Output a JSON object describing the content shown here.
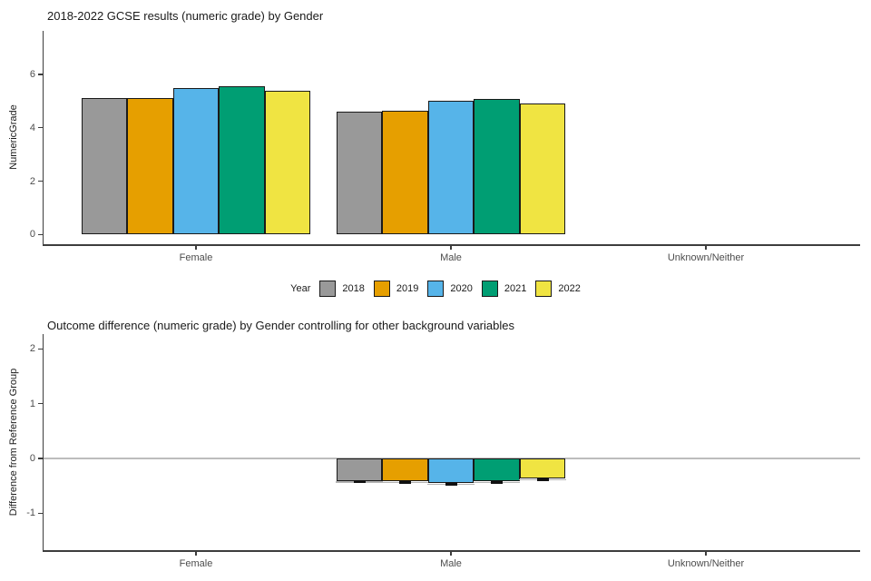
{
  "page": {
    "background": "#ffffff"
  },
  "chart_data": [
    {
      "type": "bar",
      "title": "2018-2022 GCSE results (numeric grade) by Gender",
      "ylabel": "NumericGrade",
      "xlabel": "",
      "categories": [
        "Female",
        "Male",
        "Unknown/Neither"
      ],
      "yticks": [
        0,
        2,
        4,
        6
      ],
      "ylim": [
        0,
        7.6
      ],
      "grid": false,
      "bar_outline": "#1a1a1a",
      "legend": {
        "title": "Year",
        "position": "bottom"
      },
      "series": [
        {
          "name": "2018",
          "color": "#999999",
          "values": [
            5.1,
            4.61,
            null
          ]
        },
        {
          "name": "2019",
          "color": "#E69F00",
          "values": [
            5.11,
            4.62,
            null
          ]
        },
        {
          "name": "2020",
          "color": "#56B4E9",
          "values": [
            5.5,
            5.02,
            null
          ]
        },
        {
          "name": "2021",
          "color": "#009E73",
          "values": [
            5.57,
            5.08,
            null
          ]
        },
        {
          "name": "2022",
          "color": "#F0E442",
          "values": [
            5.38,
            4.92,
            null
          ]
        }
      ]
    },
    {
      "type": "bar",
      "title": "Outcome difference (numeric grade) by Gender controlling for other background variables",
      "ylabel": "Difference from Reference Group",
      "xlabel": "",
      "categories": [
        "Female",
        "Male",
        "Unknown/Neither"
      ],
      "yticks": [
        2,
        1,
        0,
        -1
      ],
      "ylim": [
        -1.65,
        2.25
      ],
      "grid": false,
      "zero_line": true,
      "error_marks": true,
      "bar_outline": "#1a1a1a",
      "series": [
        {
          "name": "2018",
          "color": "#999999",
          "values": [
            null,
            -0.41,
            null
          ]
        },
        {
          "name": "2019",
          "color": "#E69F00",
          "values": [
            null,
            -0.42,
            null
          ]
        },
        {
          "name": "2020",
          "color": "#56B4E9",
          "values": [
            null,
            -0.45,
            null
          ]
        },
        {
          "name": "2021",
          "color": "#009E73",
          "values": [
            null,
            -0.42,
            null
          ]
        },
        {
          "name": "2022",
          "color": "#F0E442",
          "values": [
            null,
            -0.37,
            null
          ]
        }
      ]
    }
  ],
  "colors": {
    "axis": "#3d3d3d",
    "tick_text": "#4d4d4d",
    "title_text": "#1a1a1a",
    "zero_line": "#bdbdbd",
    "error_mark": "#111111"
  }
}
